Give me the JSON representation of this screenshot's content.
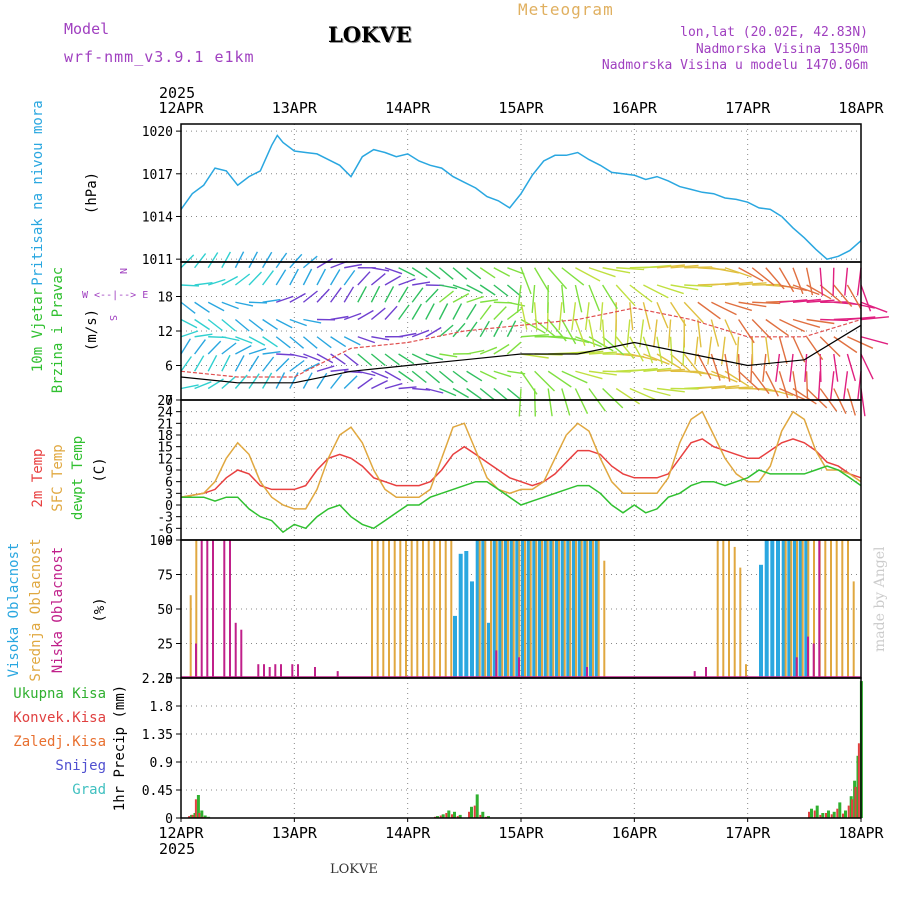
{
  "header": {
    "model_label": "Model",
    "model_value": "wrf-nmm_v3.9.1 e1km",
    "station": "LOKVE",
    "product": "Meteogram",
    "lonlat": "lon,lat (20.02E, 42.83N)",
    "alt": "Nadmorska Visina 1350m",
    "alt_model": "Nadmorska Visina u modelu 1470.06m",
    "footer_station": "LOKVE",
    "credit": "made by Angel"
  },
  "colors": {
    "pressure": "#2aa7e0",
    "temp2m": "#e84040",
    "sfc": "#e0a840",
    "dewpt": "#30c030",
    "visoka": "#2aa7e0",
    "srednja": "#e0a840",
    "niska": "#c0208a",
    "ukupna": "#30b030",
    "konvek": "#e04040",
    "snijeg": "#5050d0",
    "grad": "#40c0c0",
    "model": "#a040c0"
  },
  "chart_data": [
    {
      "type": "line",
      "panel": "pressure",
      "ylabel": "(hPa)",
      "side_label": "Pritisak na nivou mora",
      "yticks": [
        1011,
        1014,
        1017,
        1020
      ],
      "ylim": [
        1010.8,
        1020.5
      ],
      "x_days": [
        0,
        0.1,
        0.2,
        0.3,
        0.4,
        0.5,
        0.6,
        0.7,
        0.8,
        0.85,
        0.9,
        1.0,
        1.1,
        1.2,
        1.3,
        1.4,
        1.5,
        1.6,
        1.7,
        1.8,
        1.9,
        2.0,
        2.1,
        2.2,
        2.3,
        2.4,
        2.5,
        2.6,
        2.7,
        2.8,
        2.9,
        3.0,
        3.1,
        3.2,
        3.3,
        3.4,
        3.5,
        3.6,
        3.7,
        3.8,
        3.9,
        4.0,
        4.1,
        4.2,
        4.3,
        4.4,
        4.5,
        4.6,
        4.7,
        4.8,
        4.9,
        5.0,
        5.1,
        5.2,
        5.3,
        5.4,
        5.5,
        5.6,
        5.7,
        5.8,
        5.9,
        6.0
      ],
      "values": [
        1014.5,
        1015.6,
        1016.2,
        1017.4,
        1017.2,
        1016.2,
        1016.8,
        1017.2,
        1019.0,
        1019.7,
        1019.2,
        1018.6,
        1018.5,
        1018.4,
        1018.0,
        1017.6,
        1016.8,
        1018.2,
        1018.7,
        1018.5,
        1018.2,
        1018.4,
        1017.9,
        1017.6,
        1017.4,
        1016.8,
        1016.4,
        1016.0,
        1015.4,
        1015.1,
        1014.6,
        1015.6,
        1016.9,
        1017.9,
        1018.3,
        1018.3,
        1018.5,
        1018.0,
        1017.6,
        1017.1,
        1017.0,
        1016.9,
        1016.6,
        1016.8,
        1016.5,
        1016.1,
        1015.9,
        1015.7,
        1015.6,
        1015.3,
        1015.2,
        1015.0,
        1014.6,
        1014.5,
        1014.0,
        1013.2,
        1012.5,
        1011.7,
        1011.0,
        1011.2,
        1011.6,
        1012.3
      ]
    },
    {
      "type": "barbs",
      "panel": "wind",
      "ylabel": "(m/s)",
      "side_label": [
        "10m Vjetar",
        "Brzina i Pravac"
      ],
      "legend_glyph": [
        "N",
        "W <--|--> E",
        "S"
      ],
      "yticks": [
        0,
        6,
        12,
        18
      ],
      "ylim": [
        0,
        24
      ],
      "levels": [
        2,
        5,
        8,
        11,
        14,
        17,
        20,
        23
      ],
      "x_days": [
        0,
        0.5,
        1,
        1.5,
        2,
        2.5,
        3,
        3.5,
        4,
        4.5,
        5,
        5.5,
        6
      ],
      "speed_line": [
        4,
        3,
        3,
        5,
        6,
        7,
        8,
        8,
        10,
        8,
        6,
        7,
        13
      ],
      "gust_line": [
        5,
        4,
        4,
        9,
        10,
        12,
        13,
        14,
        16,
        14,
        11,
        11,
        14
      ]
    },
    {
      "type": "line",
      "panel": "temperature",
      "ylabel": "(C)",
      "side_label": [
        "2m Temp",
        "SFC Temp",
        "dewpt Temp"
      ],
      "yticks": [
        -9,
        -6,
        -3,
        0,
        3,
        6,
        9,
        12,
        15,
        18,
        21,
        24,
        27
      ],
      "ylim": [
        -9,
        27
      ],
      "x_days": [
        0,
        0.2,
        0.3,
        0.4,
        0.5,
        0.6,
        0.7,
        0.8,
        0.9,
        1.0,
        1.1,
        1.2,
        1.3,
        1.4,
        1.5,
        1.6,
        1.7,
        1.8,
        1.9,
        2.0,
        2.1,
        2.2,
        2.3,
        2.4,
        2.5,
        2.6,
        2.7,
        2.8,
        2.9,
        3.0,
        3.1,
        3.2,
        3.3,
        3.4,
        3.5,
        3.6,
        3.7,
        3.8,
        3.9,
        4.0,
        4.1,
        4.2,
        4.3,
        4.4,
        4.5,
        4.6,
        4.7,
        4.8,
        4.9,
        5.0,
        5.1,
        5.2,
        5.3,
        5.4,
        5.5,
        5.6,
        5.7,
        5.8,
        5.9,
        6.0
      ],
      "series": [
        {
          "name": "2m Temp",
          "color": "#e84040",
          "values": [
            2,
            3,
            4,
            7,
            9,
            8,
            5,
            4,
            4,
            4,
            5,
            9,
            12,
            13,
            12,
            10,
            7,
            6,
            5,
            5,
            5,
            6,
            9,
            13,
            15,
            13,
            11,
            9,
            7,
            6,
            5,
            6,
            8,
            11,
            14,
            14,
            13,
            10,
            8,
            7,
            7,
            7,
            8,
            12,
            16,
            17,
            15,
            14,
            13,
            12,
            12,
            14,
            16,
            17,
            16,
            14,
            11,
            10,
            8,
            7
          ]
        },
        {
          "name": "SFC Temp",
          "color": "#e0a840",
          "values": [
            2,
            3,
            6,
            12,
            16,
            13,
            6,
            2,
            0,
            -1,
            -1,
            4,
            12,
            18,
            20,
            16,
            9,
            4,
            2,
            2,
            2,
            4,
            12,
            20,
            21,
            14,
            7,
            4,
            3,
            4,
            4,
            6,
            12,
            18,
            21,
            19,
            12,
            6,
            3,
            3,
            3,
            3,
            7,
            16,
            22,
            24,
            18,
            12,
            8,
            6,
            6,
            10,
            19,
            24,
            22,
            14,
            9,
            9,
            8,
            6
          ]
        },
        {
          "name": "dewpt Temp",
          "color": "#30c030",
          "values": [
            2,
            2,
            1,
            2,
            2,
            -1,
            -3,
            -4,
            -7,
            -5,
            -6,
            -3,
            -1,
            0,
            -3,
            -5,
            -6,
            -4,
            -2,
            0,
            0,
            2,
            3,
            4,
            5,
            6,
            6,
            4,
            2,
            0,
            1,
            2,
            3,
            4,
            5,
            5,
            3,
            0,
            -2,
            0,
            -2,
            -1,
            2,
            3,
            5,
            6,
            6,
            5,
            6,
            7,
            9,
            8,
            8,
            8,
            8,
            9,
            10,
            9,
            7,
            5
          ]
        }
      ]
    },
    {
      "type": "bar",
      "panel": "clouds",
      "ylabel": "(%)",
      "side_label": [
        "Visoka Oblacnost",
        "Srednja Oblacnost",
        "Niska Oblacnost"
      ],
      "yticks": [
        0,
        25,
        50,
        75,
        100
      ],
      "ylim": [
        0,
        100
      ],
      "series": [
        {
          "name": "Visoka Oblacnost",
          "color": "#2aa7e0",
          "x_days": [
            2.4,
            2.45,
            2.5,
            2.55,
            2.6,
            2.65,
            2.7,
            2.75,
            2.8,
            2.85,
            2.9,
            2.95,
            3.0,
            3.05,
            3.1,
            3.15,
            3.2,
            3.25,
            3.3,
            3.35,
            3.4,
            3.45,
            3.5,
            3.55,
            3.6,
            3.65,
            5.1,
            5.15,
            5.2,
            5.25,
            5.3,
            5.35,
            5.4,
            5.45,
            5.5
          ],
          "values": [
            45,
            90,
            92,
            70,
            100,
            100,
            40,
            100,
            100,
            100,
            100,
            100,
            100,
            100,
            100,
            100,
            100,
            100,
            100,
            100,
            100,
            100,
            100,
            100,
            100,
            100,
            82,
            100,
            100,
            100,
            100,
            100,
            100,
            100,
            100
          ]
        },
        {
          "name": "Srednja Oblacnost",
          "color": "#e0a840",
          "x_days": [
            0.05,
            0.1,
            1.65,
            1.7,
            1.75,
            1.8,
            1.85,
            1.9,
            1.95,
            2.0,
            2.05,
            2.1,
            2.15,
            2.2,
            2.25,
            2.3,
            2.35,
            2.6,
            2.65,
            2.7,
            2.75,
            2.8,
            2.85,
            2.9,
            2.95,
            3.0,
            3.05,
            3.1,
            3.15,
            3.2,
            3.25,
            3.3,
            3.35,
            3.4,
            3.45,
            3.5,
            3.55,
            3.6,
            3.65,
            3.7,
            4.7,
            4.75,
            4.8,
            4.85,
            4.9,
            4.95,
            5.3,
            5.35,
            5.4,
            5.45,
            5.5,
            5.55,
            5.6,
            5.65,
            5.7,
            5.75,
            5.8,
            5.85,
            5.9
          ],
          "values": [
            60,
            100,
            100,
            100,
            100,
            100,
            100,
            100,
            100,
            100,
            100,
            100,
            100,
            100,
            100,
            100,
            100,
            100,
            100,
            100,
            100,
            100,
            100,
            100,
            100,
            100,
            100,
            100,
            100,
            100,
            100,
            100,
            100,
            100,
            100,
            100,
            100,
            100,
            100,
            85,
            100,
            100,
            100,
            95,
            80,
            10,
            100,
            100,
            100,
            100,
            100,
            100,
            100,
            100,
            100,
            100,
            100,
            100,
            70
          ]
        },
        {
          "name": "Niska Oblacnost",
          "color": "#c0208a",
          "x_days": [
            0.15,
            0.2,
            0.25,
            0.3,
            0.4,
            0.45,
            0.5,
            0.55,
            0.7,
            0.75,
            0.8,
            0.85,
            0.9,
            1.0,
            1.05,
            1.2,
            1.4,
            2.8,
            3.0,
            3.6,
            4.55,
            4.65,
            5.45,
            5.55,
            5.6,
            5.65
          ],
          "values": [
            25,
            100,
            100,
            100,
            100,
            100,
            40,
            35,
            10,
            10,
            8,
            10,
            10,
            10,
            10,
            8,
            5,
            20,
            15,
            8,
            5,
            8,
            15,
            30,
            25,
            100
          ]
        }
      ]
    },
    {
      "type": "bar",
      "panel": "precip",
      "ylabel": "1hr Precip (mm)",
      "side_label": [
        "Ukupna Kisa",
        "Konvek.Kisa",
        "Zaledj.Kisa",
        "Snijeg",
        "Grad"
      ],
      "yticks": [
        0,
        0.45,
        0.9,
        1.35,
        1.8,
        2.25
      ],
      "ylim": [
        0,
        2.25
      ],
      "x_days": [
        0.08,
        0.11,
        0.14,
        0.17,
        0.2,
        0.23,
        2.25,
        2.3,
        2.35,
        2.4,
        2.45,
        2.55,
        2.6,
        2.65,
        2.7,
        5.55,
        5.6,
        5.65,
        5.7,
        5.75,
        5.8,
        5.85,
        5.9,
        5.93,
        5.96,
        5.99
      ],
      "ukupna": [
        0.05,
        0.08,
        0.37,
        0.12,
        0.04,
        0.02,
        0.03,
        0.06,
        0.12,
        0.1,
        0.05,
        0.18,
        0.38,
        0.1,
        0.03,
        0.15,
        0.2,
        0.08,
        0.12,
        0.1,
        0.25,
        0.12,
        0.35,
        0.6,
        1.0,
        2.2
      ],
      "konvek": [
        0.03,
        0.05,
        0.3,
        0.08,
        0.02,
        0.01,
        0.02,
        0.04,
        0.08,
        0.06,
        0.03,
        0.1,
        0.2,
        0.05,
        0.02,
        0.1,
        0.12,
        0.05,
        0.08,
        0.06,
        0.15,
        0.07,
        0.2,
        0.3,
        0.5,
        1.2
      ]
    }
  ],
  "axis": {
    "year": "2025",
    "days": [
      "12APR",
      "13APR",
      "14APR",
      "15APR",
      "16APR",
      "17APR",
      "18APR"
    ]
  }
}
